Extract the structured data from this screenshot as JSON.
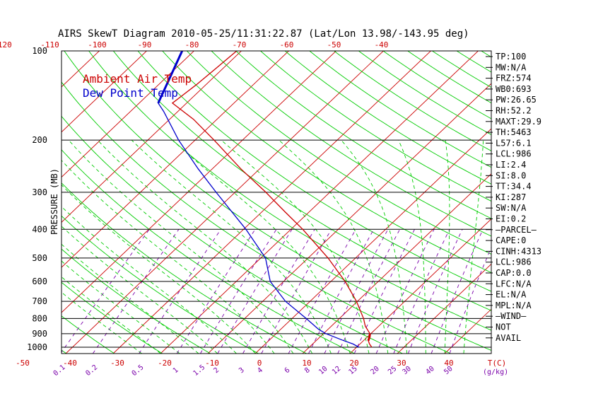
{
  "chart_data": {
    "type": "line",
    "title": "AIRS SkewT Diagram 2010-05-25/11:31:22.87 (Lat/Lon 13.98/-143.95 deg)",
    "ylabel": "PRESSURE (MB)",
    "x_unit_label": "T(C)",
    "mixing_unit_label": "(g/kg)",
    "y_scale": "log",
    "ylim": [
      1050,
      100
    ],
    "pressure_ticks": [
      100,
      200,
      300,
      400,
      500,
      600,
      700,
      800,
      900,
      1000
    ],
    "bottom_temp_ticks": [
      -50,
      -40,
      -30,
      -20,
      -10,
      0,
      10,
      20,
      30,
      40
    ],
    "top_temp_ticks": [
      -120,
      -110,
      -100,
      -90,
      -80,
      -70,
      -60,
      -50,
      -40
    ],
    "mixing_ratio_labels": [
      "0.1",
      "0.2",
      "0.5",
      "1",
      "1.5",
      "2",
      "3",
      "4",
      "6",
      "8",
      "10",
      "12",
      "15",
      "20",
      "25",
      "30",
      "40",
      "50"
    ],
    "colors": {
      "temperature": "#cc0000",
      "dewpoint": "#0000cc",
      "dry_adiabat": "#00cc00",
      "isotherm": "#cc0000",
      "moist_adiabat": "#00cc00",
      "mixing_ratio": "#7a00aa",
      "pressure_line": "#000000"
    },
    "legend": {
      "placement": "top-left",
      "entries": [
        "Ambient Air Temp",
        "Dew Point Temp"
      ]
    },
    "series": [
      {
        "name": "Ambient Air Temp",
        "color": "#cc0000",
        "points": [
          {
            "p": 1000,
            "t": 23.2
          },
          {
            "p": 975,
            "t": 22.0
          },
          {
            "p": 950,
            "t": 21.0
          },
          {
            "p": 925,
            "t": 20.5
          },
          {
            "p": 900,
            "t": 19.8
          },
          {
            "p": 850,
            "t": 17.2
          },
          {
            "p": 800,
            "t": 15.1
          },
          {
            "p": 700,
            "t": 9.8
          },
          {
            "p": 600,
            "t": 3.0
          },
          {
            "p": 500,
            "t": -5.8
          },
          {
            "p": 400,
            "t": -17.5
          },
          {
            "p": 350,
            "t": -25.0
          },
          {
            "p": 300,
            "t": -33.5
          },
          {
            "p": 250,
            "t": -44.0
          },
          {
            "p": 200,
            "t": -56.0
          },
          {
            "p": 170,
            "t": -65.0
          },
          {
            "p": 150,
            "t": -73.0
          },
          {
            "p": 130,
            "t": -72.0
          },
          {
            "p": 115,
            "t": -71.5
          },
          {
            "p": 100,
            "t": -71.0
          }
        ]
      },
      {
        "name": "Dew Point Temp",
        "color": "#0000cc",
        "points": [
          {
            "p": 1000,
            "t": 20.5
          },
          {
            "p": 975,
            "t": 18.5
          },
          {
            "p": 950,
            "t": 15.8
          },
          {
            "p": 925,
            "t": 13.2
          },
          {
            "p": 900,
            "t": 10.5
          },
          {
            "p": 870,
            "t": 8.0
          },
          {
            "p": 800,
            "t": 3.0
          },
          {
            "p": 700,
            "t": -5.2
          },
          {
            "p": 600,
            "t": -12.8
          },
          {
            "p": 500,
            "t": -19.0
          },
          {
            "p": 400,
            "t": -29.5
          },
          {
            "p": 300,
            "t": -44.0
          },
          {
            "p": 250,
            "t": -53.0
          },
          {
            "p": 200,
            "t": -63.5
          },
          {
            "p": 160,
            "t": -73.0
          },
          {
            "p": 150,
            "t": -76.0
          },
          {
            "p": 100,
            "t": -82.5
          }
        ]
      }
    ],
    "indices": [
      "TP:100",
      "MW:N/A",
      "FRZ:574",
      "WB0:693",
      "PW:26.65",
      "RH:52.2",
      "MAXT:29.9",
      "TH:5463",
      "L57:6.1",
      "LCL:986",
      "LI:2.4",
      "SI:8.0",
      "TT:34.4",
      "KI:287",
      "SW:N/A",
      "EI:0.2",
      "–PARCEL–",
      "CAPE:0",
      "CINH:4313",
      "LCL:986",
      "CAP:0.0",
      "LFC:N/A",
      "EL:N/A",
      "MPL:N/A",
      "–WIND–",
      "NOT",
      "AVAIL"
    ]
  }
}
